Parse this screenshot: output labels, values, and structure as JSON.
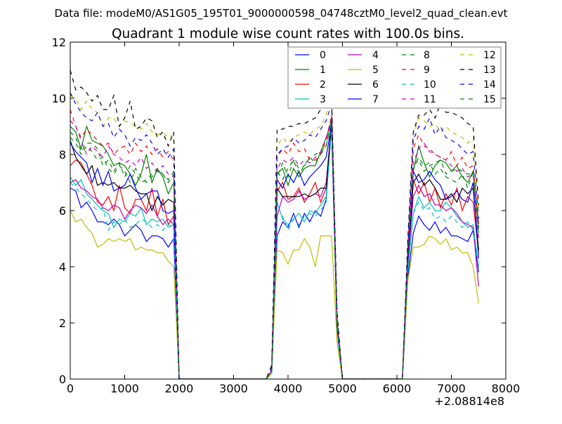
{
  "chart_data": {
    "type": "line",
    "suptitle": "Data file: modeM0/AS1G05_195T01_9000000598_04748cztM0_level2_quad_clean.evt",
    "title": "Quadrant 1 module wise count rates with 100.0s bins.",
    "xlabel": "",
    "ylabel": "",
    "xlim": [
      0,
      8000
    ],
    "ylim": [
      0,
      12
    ],
    "x_offset_text": "+2.08814e8",
    "xticks": [
      "0",
      "1000",
      "2000",
      "3000",
      "4000",
      "5000",
      "6000",
      "7000",
      "8000"
    ],
    "yticks": [
      "0",
      "2",
      "4",
      "6",
      "8",
      "10",
      "12"
    ],
    "legend_position": "top-right",
    "x_step": 100,
    "segment_starts": [
      0,
      3700,
      6100
    ],
    "gap_value": 0,
    "series": [
      {
        "name": "0",
        "color": "#0000ff",
        "style": "solid",
        "seg1": [
          6.8,
          6.7,
          6.1,
          6.3,
          6.0,
          5.6,
          5.6,
          5.5,
          5.7,
          5.5,
          5.1,
          5.3,
          5.5,
          5.3,
          4.9,
          5.1,
          5.1,
          5.0,
          4.7,
          5.0,
          0.0
        ],
        "seg2": [
          0.2,
          5.1,
          5.6,
          5.4,
          5.9,
          5.4,
          5.9,
          5.6,
          6.0,
          5.8,
          6.4,
          9.0,
          1.8,
          0.0
        ],
        "seg3": [
          0.0,
          3.6,
          5.2,
          5.8,
          5.5,
          5.3,
          5.6,
          5.2,
          5.4,
          5.1,
          5.1,
          5.0,
          4.9,
          5.3,
          3.8
        ]
      },
      {
        "name": "1",
        "color": "#008000",
        "style": "solid",
        "seg1": [
          9.0,
          8.8,
          8.2,
          9.0,
          8.5,
          8.4,
          8.3,
          8.0,
          7.6,
          7.7,
          7.6,
          7.3,
          6.9,
          7.3,
          8.0,
          7.0,
          7.5,
          7.2,
          6.6,
          7.0,
          0.0
        ],
        "seg2": [
          0.3,
          7.3,
          7.5,
          6.9,
          7.5,
          7.2,
          7.5,
          7.6,
          7.6,
          8.1,
          8.6,
          9.2,
          2.0,
          0.0
        ],
        "seg3": [
          0.0,
          4.3,
          7.4,
          8.3,
          7.7,
          7.2,
          7.6,
          7.8,
          7.7,
          7.4,
          7.6,
          7.2,
          7.0,
          7.4,
          5.2
        ]
      },
      {
        "name": "2",
        "color": "#ff0000",
        "style": "solid",
        "seg1": [
          7.6,
          7.8,
          7.7,
          7.3,
          6.9,
          6.3,
          6.2,
          6.5,
          6.0,
          6.9,
          6.1,
          5.9,
          6.4,
          6.4,
          6.0,
          6.8,
          5.8,
          6.4,
          5.5,
          5.8,
          0.0
        ],
        "seg2": [
          0.3,
          6.7,
          7.0,
          6.4,
          6.5,
          6.8,
          6.3,
          6.6,
          7.0,
          6.3,
          6.8,
          9.0,
          1.8,
          0.0
        ],
        "seg3": [
          0.0,
          4.0,
          7.1,
          6.6,
          7.0,
          6.3,
          6.8,
          6.1,
          6.6,
          6.2,
          6.8,
          6.0,
          6.5,
          6.3,
          4.5
        ]
      },
      {
        "name": "3",
        "color": "#00bfbf",
        "style": "solid",
        "seg1": [
          7.2,
          6.9,
          7.1,
          6.6,
          6.4,
          6.2,
          6.0,
          5.9,
          5.4,
          5.7,
          5.6,
          5.9,
          5.8,
          6.1,
          5.5,
          5.7,
          5.6,
          5.7,
          5.4,
          5.5,
          0.0
        ],
        "seg2": [
          0.2,
          6.3,
          5.7,
          5.5,
          5.7,
          5.9,
          5.6,
          6.0,
          5.9,
          6.2,
          6.5,
          9.0,
          1.7,
          0.0
        ],
        "seg3": [
          0.0,
          3.9,
          5.9,
          6.5,
          6.1,
          6.3,
          6.0,
          6.0,
          6.3,
          6.1,
          5.8,
          5.6,
          5.4,
          5.5,
          4.0
        ]
      },
      {
        "name": "4",
        "color": "#bf00bf",
        "style": "solid",
        "seg1": [
          7.0,
          7.1,
          6.8,
          6.7,
          6.5,
          6.4,
          6.1,
          6.0,
          6.2,
          6.1,
          5.7,
          6.0,
          6.2,
          6.1,
          5.9,
          6.2,
          5.8,
          5.5,
          5.7,
          5.5,
          0.0
        ],
        "seg2": [
          0.3,
          5.8,
          6.5,
          6.3,
          6.4,
          6.7,
          6.4,
          6.5,
          6.6,
          6.5,
          7.0,
          9.1,
          1.8,
          0.0
        ],
        "seg3": [
          0.0,
          4.1,
          6.5,
          6.9,
          6.5,
          6.6,
          6.2,
          6.2,
          6.0,
          6.1,
          5.9,
          5.6,
          5.5,
          5.4,
          3.3
        ]
      },
      {
        "name": "5",
        "color": "#bfbf00",
        "style": "solid",
        "seg1": [
          6.0,
          5.6,
          5.7,
          5.4,
          5.2,
          4.7,
          4.8,
          5.0,
          4.9,
          5.0,
          4.9,
          5.0,
          4.6,
          4.7,
          4.6,
          4.6,
          4.5,
          4.5,
          4.2,
          4.0,
          0.0
        ],
        "seg2": [
          0.2,
          4.6,
          4.5,
          4.1,
          4.6,
          4.6,
          5.0,
          4.7,
          4.0,
          5.1,
          5.1,
          5.1,
          1.3,
          0.0
        ],
        "seg3": [
          0.0,
          3.5,
          4.7,
          4.7,
          4.8,
          5.1,
          5.0,
          4.8,
          5.0,
          4.6,
          4.7,
          4.5,
          4.5,
          4.0,
          2.7
        ]
      },
      {
        "name": "6",
        "color": "#000000",
        "style": "solid",
        "seg1": [
          8.5,
          7.9,
          7.6,
          7.3,
          7.6,
          6.9,
          7.0,
          6.9,
          7.0,
          6.8,
          6.8,
          6.9,
          6.7,
          6.6,
          6.6,
          6.0,
          6.5,
          6.2,
          6.4,
          6.3,
          0.0
        ],
        "seg2": [
          0.3,
          6.8,
          6.5,
          6.5,
          6.5,
          6.5,
          6.6,
          6.5,
          6.6,
          6.8,
          6.8,
          9.2,
          1.9,
          0.0
        ],
        "seg3": [
          0.0,
          4.2,
          7.0,
          7.3,
          6.9,
          7.1,
          6.8,
          6.4,
          6.4,
          6.6,
          6.3,
          6.8,
          6.6,
          6.8,
          4.6
        ]
      },
      {
        "name": "7",
        "color": "#0000ff",
        "style": "solid",
        "seg1": [
          8.4,
          8.1,
          7.9,
          7.7,
          7.0,
          7.5,
          6.9,
          7.4,
          6.7,
          6.8,
          6.9,
          7.3,
          6.8,
          6.4,
          6.6,
          6.7,
          6.7,
          6.0,
          5.9,
          6.0,
          0.0
        ],
        "seg2": [
          0.3,
          7.1,
          6.8,
          7.3,
          7.0,
          7.4,
          6.9,
          7.2,
          7.4,
          7.6,
          7.9,
          9.1,
          1.9,
          0.0
        ],
        "seg3": [
          0.0,
          4.3,
          7.4,
          7.0,
          7.1,
          7.4,
          7.1,
          6.9,
          6.4,
          6.5,
          6.7,
          6.4,
          6.3,
          7.0,
          4.3
        ]
      },
      {
        "name": "8",
        "color": "#008000",
        "style": "dashed",
        "seg1": [
          8.8,
          8.6,
          8.1,
          8.4,
          8.4,
          8.2,
          7.6,
          7.8,
          7.4,
          7.7,
          7.2,
          7.6,
          7.3,
          7.0,
          7.1,
          7.3,
          7.5,
          7.3,
          7.1,
          7.4,
          0.0
        ],
        "seg2": [
          0.3,
          7.2,
          7.7,
          7.2,
          7.8,
          7.5,
          7.6,
          7.9,
          8.0,
          8.1,
          8.3,
          9.3,
          2.0,
          0.0
        ],
        "seg3": [
          0.0,
          4.4,
          7.6,
          7.8,
          7.4,
          7.6,
          7.7,
          7.8,
          7.3,
          7.4,
          7.5,
          7.4,
          7.3,
          7.3,
          5.4
        ]
      },
      {
        "name": "9",
        "color": "#ff0000",
        "style": "dashed",
        "seg1": [
          9.6,
          9.0,
          8.6,
          8.9,
          8.7,
          8.5,
          8.3,
          8.4,
          8.0,
          8.2,
          8.3,
          8.0,
          8.4,
          8.1,
          8.3,
          8.0,
          8.2,
          7.9,
          8.1,
          7.8,
          0.0
        ],
        "seg2": [
          0.3,
          7.9,
          8.2,
          8.0,
          8.4,
          8.1,
          8.2,
          7.8,
          7.8,
          8.0,
          8.5,
          9.4,
          2.1,
          0.0
        ],
        "seg3": [
          0.0,
          4.6,
          8.2,
          8.7,
          8.3,
          8.2,
          8.0,
          7.9,
          7.8,
          8.1,
          7.6,
          7.9,
          7.5,
          7.6,
          5.5
        ]
      },
      {
        "name": "10",
        "color": "#00bfbf",
        "style": "dashed",
        "seg1": [
          7.0,
          6.8,
          6.6,
          6.4,
          6.2,
          6.0,
          6.1,
          5.3,
          5.6,
          5.5,
          5.7,
          5.4,
          5.5,
          5.7,
          5.6,
          5.4,
          5.5,
          5.3,
          5.5,
          5.4,
          0.0
        ],
        "seg2": [
          0.2,
          5.7,
          5.8,
          5.3,
          5.7,
          5.5,
          5.8,
          5.9,
          5.8,
          6.0,
          6.3,
          9.0,
          1.7,
          0.0
        ],
        "seg3": [
          0.0,
          3.8,
          5.9,
          6.3,
          6.0,
          6.1,
          5.7,
          5.8,
          5.6,
          5.8,
          5.6,
          5.4,
          5.6,
          5.3,
          3.9
        ]
      },
      {
        "name": "11",
        "color": "#bf00bf",
        "style": "dashed",
        "seg1": [
          9.2,
          9.0,
          8.5,
          8.0,
          8.3,
          8.1,
          7.9,
          8.3,
          8.0,
          7.9,
          7.7,
          7.8,
          7.6,
          7.9,
          7.5,
          7.7,
          7.4,
          7.6,
          7.3,
          7.2,
          0.0
        ],
        "seg2": [
          0.3,
          7.5,
          7.8,
          7.7,
          7.9,
          7.6,
          7.8,
          7.7,
          7.9,
          8.1,
          8.6,
          9.3,
          2.0,
          0.0
        ],
        "seg3": [
          0.0,
          4.5,
          7.7,
          8.2,
          8.4,
          8.1,
          8.0,
          7.9,
          7.8,
          7.6,
          7.4,
          7.5,
          7.2,
          7.3,
          5.0
        ]
      },
      {
        "name": "12",
        "color": "#bfbf00",
        "style": "dashed",
        "seg1": [
          10.1,
          10.0,
          9.6,
          9.9,
          9.6,
          9.5,
          9.0,
          9.3,
          9.3,
          9.0,
          9.2,
          9.1,
          9.0,
          8.9,
          9.1,
          8.8,
          8.7,
          8.8,
          8.6,
          8.7,
          0.0
        ],
        "seg2": [
          0.4,
          8.3,
          8.6,
          8.4,
          8.6,
          8.7,
          8.8,
          8.7,
          8.9,
          9.0,
          9.4,
          10.4,
          2.3,
          0.0
        ],
        "seg3": [
          0.0,
          4.8,
          8.7,
          9.3,
          9.2,
          9.0,
          9.1,
          8.8,
          9.0,
          8.8,
          8.7,
          8.6,
          8.4,
          8.6,
          6.0
        ]
      },
      {
        "name": "13",
        "color": "#000000",
        "style": "dashed",
        "seg1": [
          11.0,
          10.3,
          10.4,
          10.2,
          9.9,
          10.1,
          9.6,
          9.6,
          10.1,
          9.0,
          9.3,
          9.9,
          8.9,
          9.0,
          9.3,
          9.2,
          8.6,
          8.8,
          8.3,
          8.8,
          0.0
        ],
        "seg2": [
          0.5,
          8.9,
          8.9,
          9.0,
          9.0,
          9.1,
          9.1,
          9.2,
          9.3,
          9.6,
          9.8,
          10.0,
          2.4,
          0.0
        ],
        "seg3": [
          0.0,
          5.0,
          8.8,
          9.4,
          9.4,
          9.6,
          9.3,
          9.8,
          9.5,
          9.5,
          9.4,
          9.3,
          9.1,
          9.0,
          6.2
        ]
      },
      {
        "name": "14",
        "color": "#0000ff",
        "style": "dashed",
        "seg1": [
          10.2,
          9.8,
          9.5,
          9.3,
          9.2,
          9.5,
          9.0,
          9.1,
          8.6,
          8.9,
          8.7,
          8.3,
          8.6,
          8.5,
          8.7,
          8.4,
          8.0,
          8.2,
          7.9,
          8.2,
          0.0
        ],
        "seg2": [
          0.4,
          8.0,
          8.2,
          8.3,
          8.6,
          8.4,
          8.5,
          8.7,
          8.6,
          8.9,
          9.2,
          9.8,
          2.2,
          0.0
        ],
        "seg3": [
          0.0,
          4.7,
          8.5,
          9.0,
          8.9,
          9.3,
          8.7,
          9.0,
          8.6,
          8.5,
          8.4,
          8.2,
          8.0,
          8.1,
          5.7
        ]
      },
      {
        "name": "15",
        "color": "#008000",
        "style": "dashed",
        "seg1": [
          8.6,
          8.4,
          8.0,
          8.3,
          8.1,
          7.8,
          7.9,
          7.5,
          7.3,
          7.6,
          7.4,
          7.0,
          7.5,
          7.2,
          7.0,
          7.2,
          7.4,
          7.3,
          7.0,
          7.3,
          0.0
        ],
        "seg2": [
          0.3,
          7.4,
          7.1,
          7.5,
          7.8,
          7.3,
          7.6,
          7.9,
          7.7,
          8.0,
          8.3,
          9.2,
          2.0,
          0.0
        ],
        "seg3": [
          0.0,
          4.2,
          7.5,
          7.9,
          7.6,
          7.7,
          7.3,
          7.5,
          7.2,
          7.1,
          7.0,
          7.3,
          6.8,
          7.4,
          5.3
        ]
      }
    ]
  }
}
